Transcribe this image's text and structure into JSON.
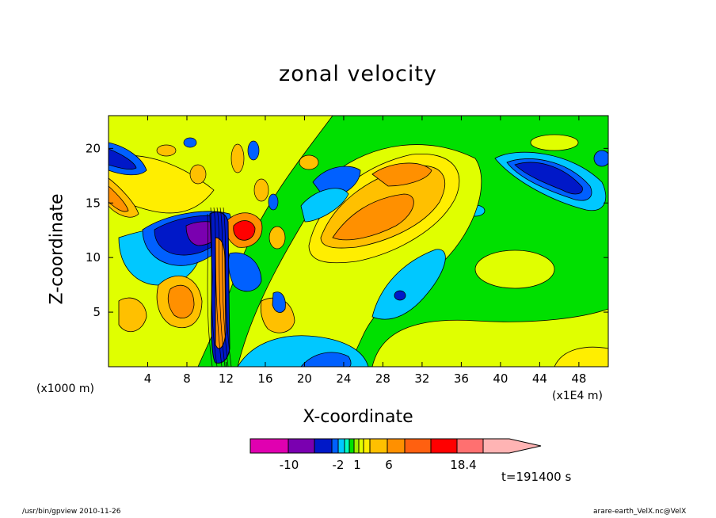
{
  "chart_data": {
    "type": "heatmap",
    "title": "zonal velocity",
    "xlabel": "X-coordinate",
    "ylabel": "Z-coordinate",
    "x_unit": "(x1E4 m)",
    "y_unit": "(x1000 m)",
    "x_ticks": [
      "4",
      "8",
      "12",
      "16",
      "20",
      "24",
      "28",
      "32",
      "36",
      "40",
      "44",
      "48"
    ],
    "y_ticks": [
      "5",
      "10",
      "15",
      "20"
    ],
    "xlim": [
      0,
      51
    ],
    "ylim": [
      0,
      23
    ],
    "colorbar": {
      "tick_labels": [
        "-10",
        "-2",
        "1",
        "6",
        "18.4"
      ],
      "colors": [
        "#e000b0",
        "#7a00b0",
        "#0018c8",
        "#0060ff",
        "#00c8ff",
        "#00ffc0",
        "#00e000",
        "#a0f000",
        "#e0ff00",
        "#ffee00",
        "#ffc000",
        "#ff9000",
        "#ff6010",
        "#ff0000",
        "#ff7070",
        "#ffb4b4"
      ]
    },
    "time_label": "t=191400 s"
  },
  "footer": {
    "left": "/usr/bin/gpview  2010-11-26",
    "right": "arare-earth_VelX.nc@VelX"
  }
}
